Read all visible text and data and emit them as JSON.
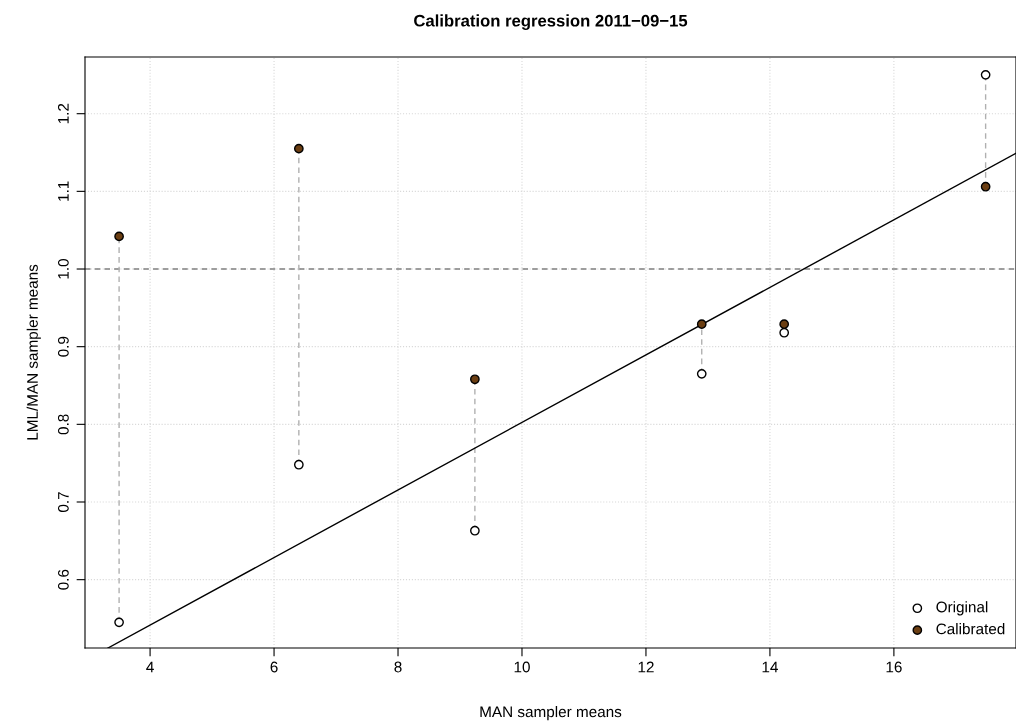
{
  "chart_data": {
    "type": "scatter",
    "title": "Calibration regression 2011−09−15",
    "xlabel": "MAN sampler means",
    "ylabel": "LML/MAN sampler means",
    "xlim": [
      2.95,
      17.97
    ],
    "ylim": [
      0.512,
      1.273
    ],
    "xticks": [
      4,
      6,
      8,
      10,
      12,
      14,
      16
    ],
    "yticks": [
      0.6,
      0.7,
      0.8,
      0.9,
      {
        "value": 1.0,
        "label": "1.0"
      },
      1.1,
      1.2
    ],
    "grid": true,
    "legend": "bottom right",
    "ref_lines": [
      {
        "axis": "y",
        "value": 1.0,
        "color": "#808080",
        "line_style": "dashed"
      }
    ],
    "series": [
      {
        "type": "line",
        "marker": "none",
        "color": "#b0b0b0",
        "line_style": "dashed",
        "x": [
          3.5,
          3.5
        ],
        "values": [
          0.545,
          1.042
        ]
      },
      {
        "type": "line",
        "marker": "none",
        "color": "#b0b0b0",
        "line_style": "dashed",
        "x": [
          6.4,
          6.4
        ],
        "values": [
          0.748,
          1.155
        ]
      },
      {
        "type": "line",
        "marker": "none",
        "color": "#b0b0b0",
        "line_style": "dashed",
        "x": [
          9.24,
          9.24
        ],
        "values": [
          0.663,
          0.858
        ]
      },
      {
        "type": "line",
        "marker": "none",
        "color": "#b0b0b0",
        "line_style": "dashed",
        "x": [
          12.9,
          12.9
        ],
        "values": [
          0.865,
          0.929
        ]
      },
      {
        "type": "line",
        "marker": "none",
        "color": "#b0b0b0",
        "line_style": "dashed",
        "x": [
          17.48,
          17.48
        ],
        "values": [
          1.25,
          1.106
        ]
      },
      {
        "type": "line",
        "marker": "none",
        "color": "#000000",
        "line_style": "solid",
        "x": [
          3.32,
          17.97
        ],
        "values": [
          0.512,
          1.149
        ]
      },
      {
        "name": "Original",
        "marker": "circle",
        "color": "#ffffff",
        "x": [
          3.5,
          6.4,
          9.24,
          12.9,
          14.23,
          17.48
        ],
        "values": [
          0.545,
          0.748,
          0.663,
          0.865,
          0.918,
          1.25
        ]
      },
      {
        "name": "Calibrated",
        "marker": "circle",
        "color": "#6b3e12",
        "x": [
          3.5,
          6.4,
          9.24,
          12.9,
          14.23,
          17.48
        ],
        "values": [
          1.042,
          1.155,
          0.858,
          0.929,
          0.929,
          1.106
        ]
      }
    ]
  }
}
